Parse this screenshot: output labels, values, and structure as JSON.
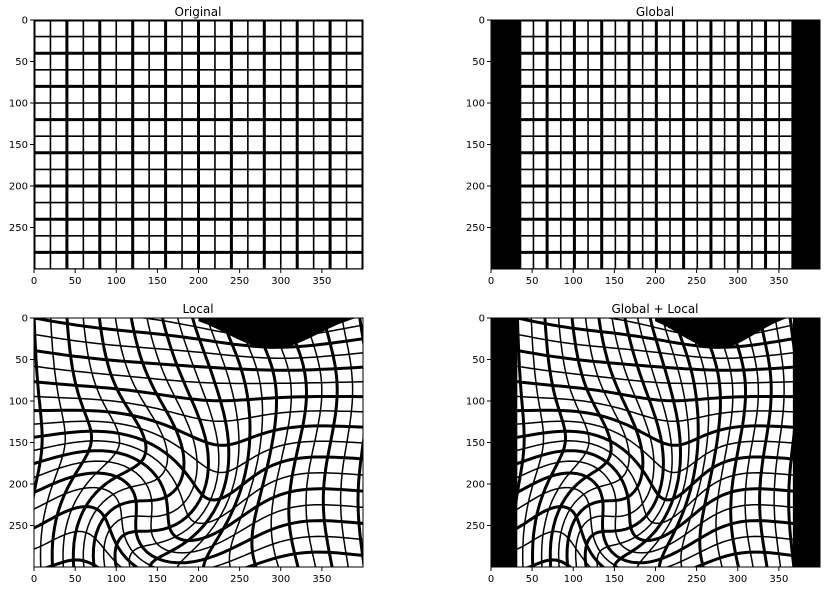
{
  "chart_data": [
    {
      "type": "image",
      "title": "Original",
      "xlim": [
        0,
        400
      ],
      "ylim": [
        300,
        0
      ],
      "xticks": [
        0,
        50,
        100,
        150,
        200,
        250,
        300,
        350
      ],
      "yticks": [
        0,
        50,
        100,
        150,
        200,
        250
      ],
      "grid_spacing": 20,
      "thick_line_every": 2,
      "black_bands_x": []
    },
    {
      "type": "image",
      "title": "Global",
      "xlim": [
        0,
        400
      ],
      "ylim": [
        300,
        0
      ],
      "xticks": [
        0,
        50,
        100,
        150,
        200,
        250,
        300,
        350
      ],
      "yticks": [
        0,
        50,
        100,
        150,
        200,
        250
      ],
      "grid_spacing": 20,
      "thick_line_every": 2,
      "black_bands_x": [
        [
          0,
          35
        ],
        [
          367,
          400
        ]
      ]
    },
    {
      "type": "image",
      "title": "Local",
      "xlim": [
        0,
        400
      ],
      "ylim": [
        300,
        0
      ],
      "xticks": [
        0,
        50,
        100,
        150,
        200,
        250,
        300,
        350
      ],
      "yticks": [
        0,
        50,
        100,
        150,
        200,
        250
      ],
      "black_bands_x": []
    },
    {
      "type": "image",
      "title": "Global + Local",
      "xlim": [
        0,
        400
      ],
      "ylim": [
        300,
        0
      ],
      "xticks": [
        0,
        50,
        100,
        150,
        200,
        250,
        300,
        350
      ],
      "yticks": [
        0,
        50,
        100,
        150,
        200,
        250
      ],
      "black_bands_x": [
        [
          0,
          32
        ],
        [
          367,
          400
        ]
      ]
    }
  ]
}
